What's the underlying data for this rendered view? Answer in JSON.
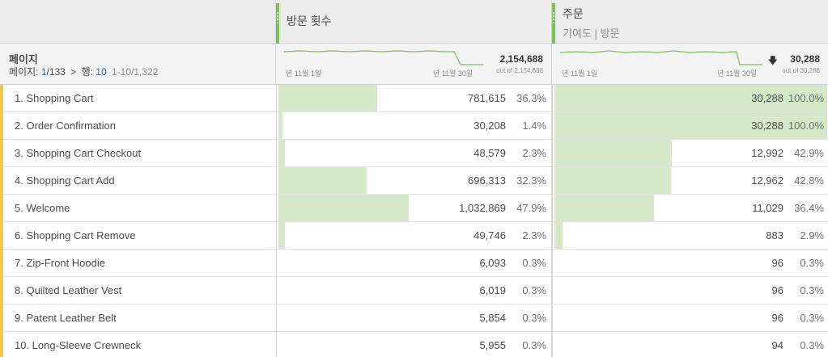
{
  "columns": [
    {
      "title": "방문 횟수",
      "subtitle": ""
    },
    {
      "title": "주문",
      "subtitle": "기여도 | 방문"
    }
  ],
  "dimension": {
    "label": "페이지",
    "pager_prefix": "페이지:",
    "page_current": "1",
    "page_total": "/133",
    "rows_label": "행:",
    "rows_value": "10",
    "range": "1-10/1,322"
  },
  "summary": [
    {
      "date_start": "년 11월 1일",
      "date_end": "년 11월 30일",
      "total": "2,154,688",
      "out_of": "out of 2,154,688",
      "sort_arrow": ""
    },
    {
      "date_start": "년 11월 1일",
      "date_end": "년 11월 30일",
      "total": "30,288",
      "out_of": "out of 30,288",
      "sort_arrow": "🡇"
    }
  ],
  "colors": {
    "bar_fill": "#d3e9c7",
    "accent": "#7cc154",
    "row_marker": "#f2c94c",
    "link": "#2c6fb2"
  },
  "rows": [
    {
      "name": "1. Shopping Cart",
      "v1": "781,615",
      "p1": "36.3%",
      "f1": 0.363,
      "v2": "30,288",
      "p2": "100.0%",
      "f2": 1.0
    },
    {
      "name": "2. Order Confirmation",
      "v1": "30,208",
      "p1": "1.4%",
      "f1": 0.014,
      "v2": "30,288",
      "p2": "100.0%",
      "f2": 1.0
    },
    {
      "name": "3. Shopping Cart Checkout",
      "v1": "48,579",
      "p1": "2.3%",
      "f1": 0.023,
      "v2": "12,992",
      "p2": "42.9%",
      "f2": 0.429
    },
    {
      "name": "4. Shopping Cart Add",
      "v1": "696,313",
      "p1": "32.3%",
      "f1": 0.323,
      "v2": "12,962",
      "p2": "42.8%",
      "f2": 0.428
    },
    {
      "name": "5. Welcome",
      "v1": "1,032,869",
      "p1": "47.9%",
      "f1": 0.479,
      "v2": "11,029",
      "p2": "36.4%",
      "f2": 0.364
    },
    {
      "name": "6. Shopping Cart Remove",
      "v1": "49,746",
      "p1": "2.3%",
      "f1": 0.023,
      "v2": "883",
      "p2": "2.9%",
      "f2": 0.029
    },
    {
      "name": "7. Zip-Front Hoodie",
      "v1": "6,093",
      "p1": "0.3%",
      "f1": 0.003,
      "v2": "96",
      "p2": "0.3%",
      "f2": 0.003
    },
    {
      "name": "8. Quilted Leather Vest",
      "v1": "6,019",
      "p1": "0.3%",
      "f1": 0.003,
      "v2": "96",
      "p2": "0.3%",
      "f2": 0.003
    },
    {
      "name": "9. Patent Leather Belt",
      "v1": "5,854",
      "p1": "0.3%",
      "f1": 0.003,
      "v2": "96",
      "p2": "0.3%",
      "f2": 0.003
    },
    {
      "name": "10. Long-Sleeve Crewneck",
      "v1": "5,955",
      "p1": "0.3%",
      "f1": 0.003,
      "v2": "94",
      "p2": "0.3%",
      "f2": 0.003
    }
  ]
}
